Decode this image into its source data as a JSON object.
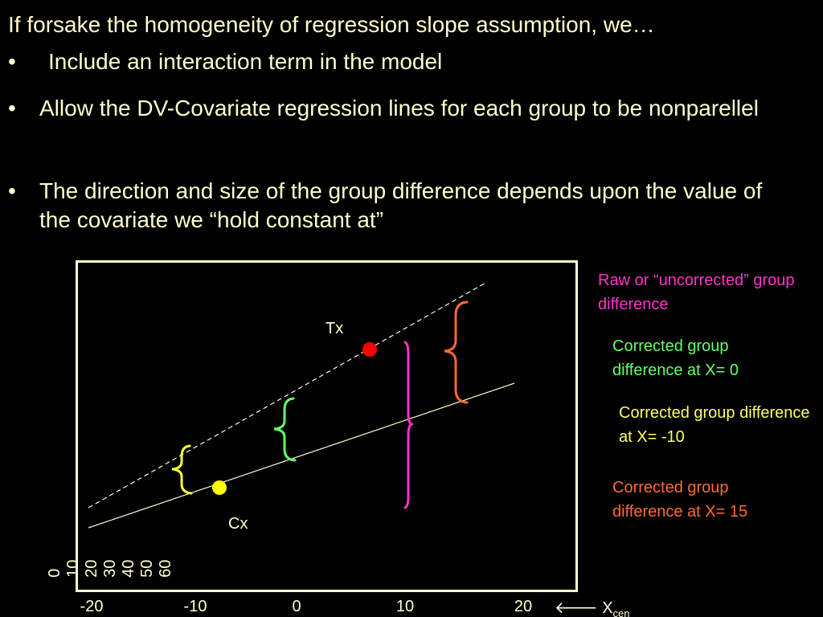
{
  "heading": "If forsake the homogeneity of regression slope assumption, we…",
  "bullets": [
    {
      "marker": "•",
      "text": "Include an interaction term in the model"
    },
    {
      "marker": "•",
      "text": "Allow the DV-Covariate regression lines for each group to be nonparellel"
    },
    {
      "marker": "•",
      "text": "The direction and size of the group difference depends upon the value of the covariate we “hold constant at”"
    }
  ],
  "diagram": {
    "point_labels": {
      "tx": "Tx",
      "cx": "Cx"
    },
    "x_ticks": [
      "-20",
      "-10",
      "0",
      "10",
      "20"
    ],
    "y_ticks": [
      "0",
      "10",
      "20",
      "30",
      "40",
      "50",
      "60"
    ],
    "x_axis_label": {
      "arrow": "🡐",
      "main": "X",
      "sub": "cen"
    },
    "annotations": {
      "raw": "Raw or “uncorrected” group difference",
      "at_x0": "Corrected group difference at X= 0",
      "at_xm10": "Corrected group difference at X= -10",
      "at_x15": "Corrected group difference at X= 15"
    },
    "colors": {
      "raw": "#ff33cc",
      "at_x0": "#66ff66",
      "at_xm10": "#ffff66",
      "at_x15": "#ff6a33",
      "tx_point": "#ff0000",
      "cx_point": "#ffff00",
      "text": "#ffffcc",
      "background": "#000000"
    }
  }
}
